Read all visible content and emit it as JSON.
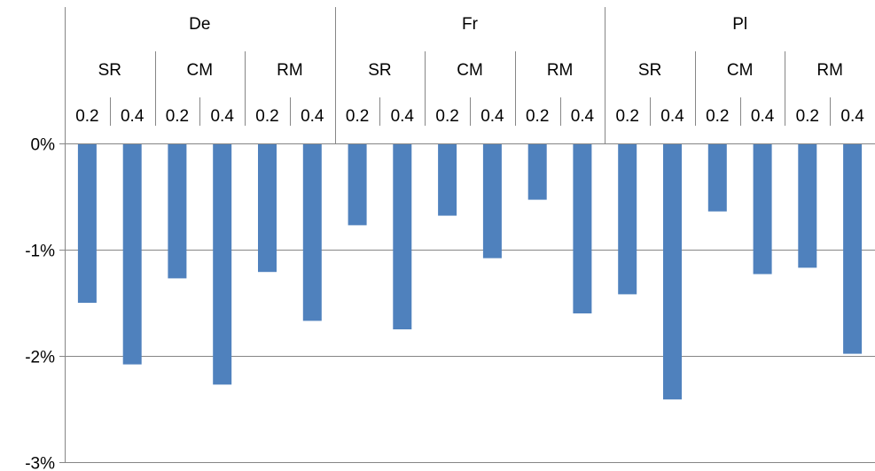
{
  "chart_data": {
    "type": "bar",
    "y_tick_labels": [
      "0%",
      "-1%",
      "-2%",
      "-3%"
    ],
    "y_ticks": [
      0,
      -1,
      -2,
      -3
    ],
    "ylim": [
      -3,
      0
    ],
    "grid": true,
    "legend": "none",
    "bar_color": "#4F81BD",
    "x_groups": [
      {
        "label": "De",
        "subgroups": [
          {
            "label": "SR",
            "categories": [
              "0.2",
              "0.4"
            ],
            "values": [
              -1.5,
              -2.08
            ]
          },
          {
            "label": "CM",
            "categories": [
              "0.2",
              "0.4"
            ],
            "values": [
              -1.27,
              -2.27
            ]
          },
          {
            "label": "RM",
            "categories": [
              "0.2",
              "0.4"
            ],
            "values": [
              -1.21,
              -1.67
            ]
          }
        ]
      },
      {
        "label": "Fr",
        "subgroups": [
          {
            "label": "SR",
            "categories": [
              "0.2",
              "0.4"
            ],
            "values": [
              -0.77,
              -1.75
            ]
          },
          {
            "label": "CM",
            "categories": [
              "0.2",
              "0.4"
            ],
            "values": [
              -0.68,
              -1.08
            ]
          },
          {
            "label": "RM",
            "categories": [
              "0.2",
              "0.4"
            ],
            "values": [
              -0.53,
              -1.6
            ]
          }
        ]
      },
      {
        "label": "Pl",
        "subgroups": [
          {
            "label": "SR",
            "categories": [
              "0.2",
              "0.4"
            ],
            "values": [
              -1.42,
              -2.41
            ]
          },
          {
            "label": "CM",
            "categories": [
              "0.2",
              "0.4"
            ],
            "values": [
              -0.64,
              -1.23
            ]
          },
          {
            "label": "RM",
            "categories": [
              "0.2",
              "0.4"
            ],
            "values": [
              -1.17,
              -1.98
            ]
          }
        ]
      }
    ]
  }
}
